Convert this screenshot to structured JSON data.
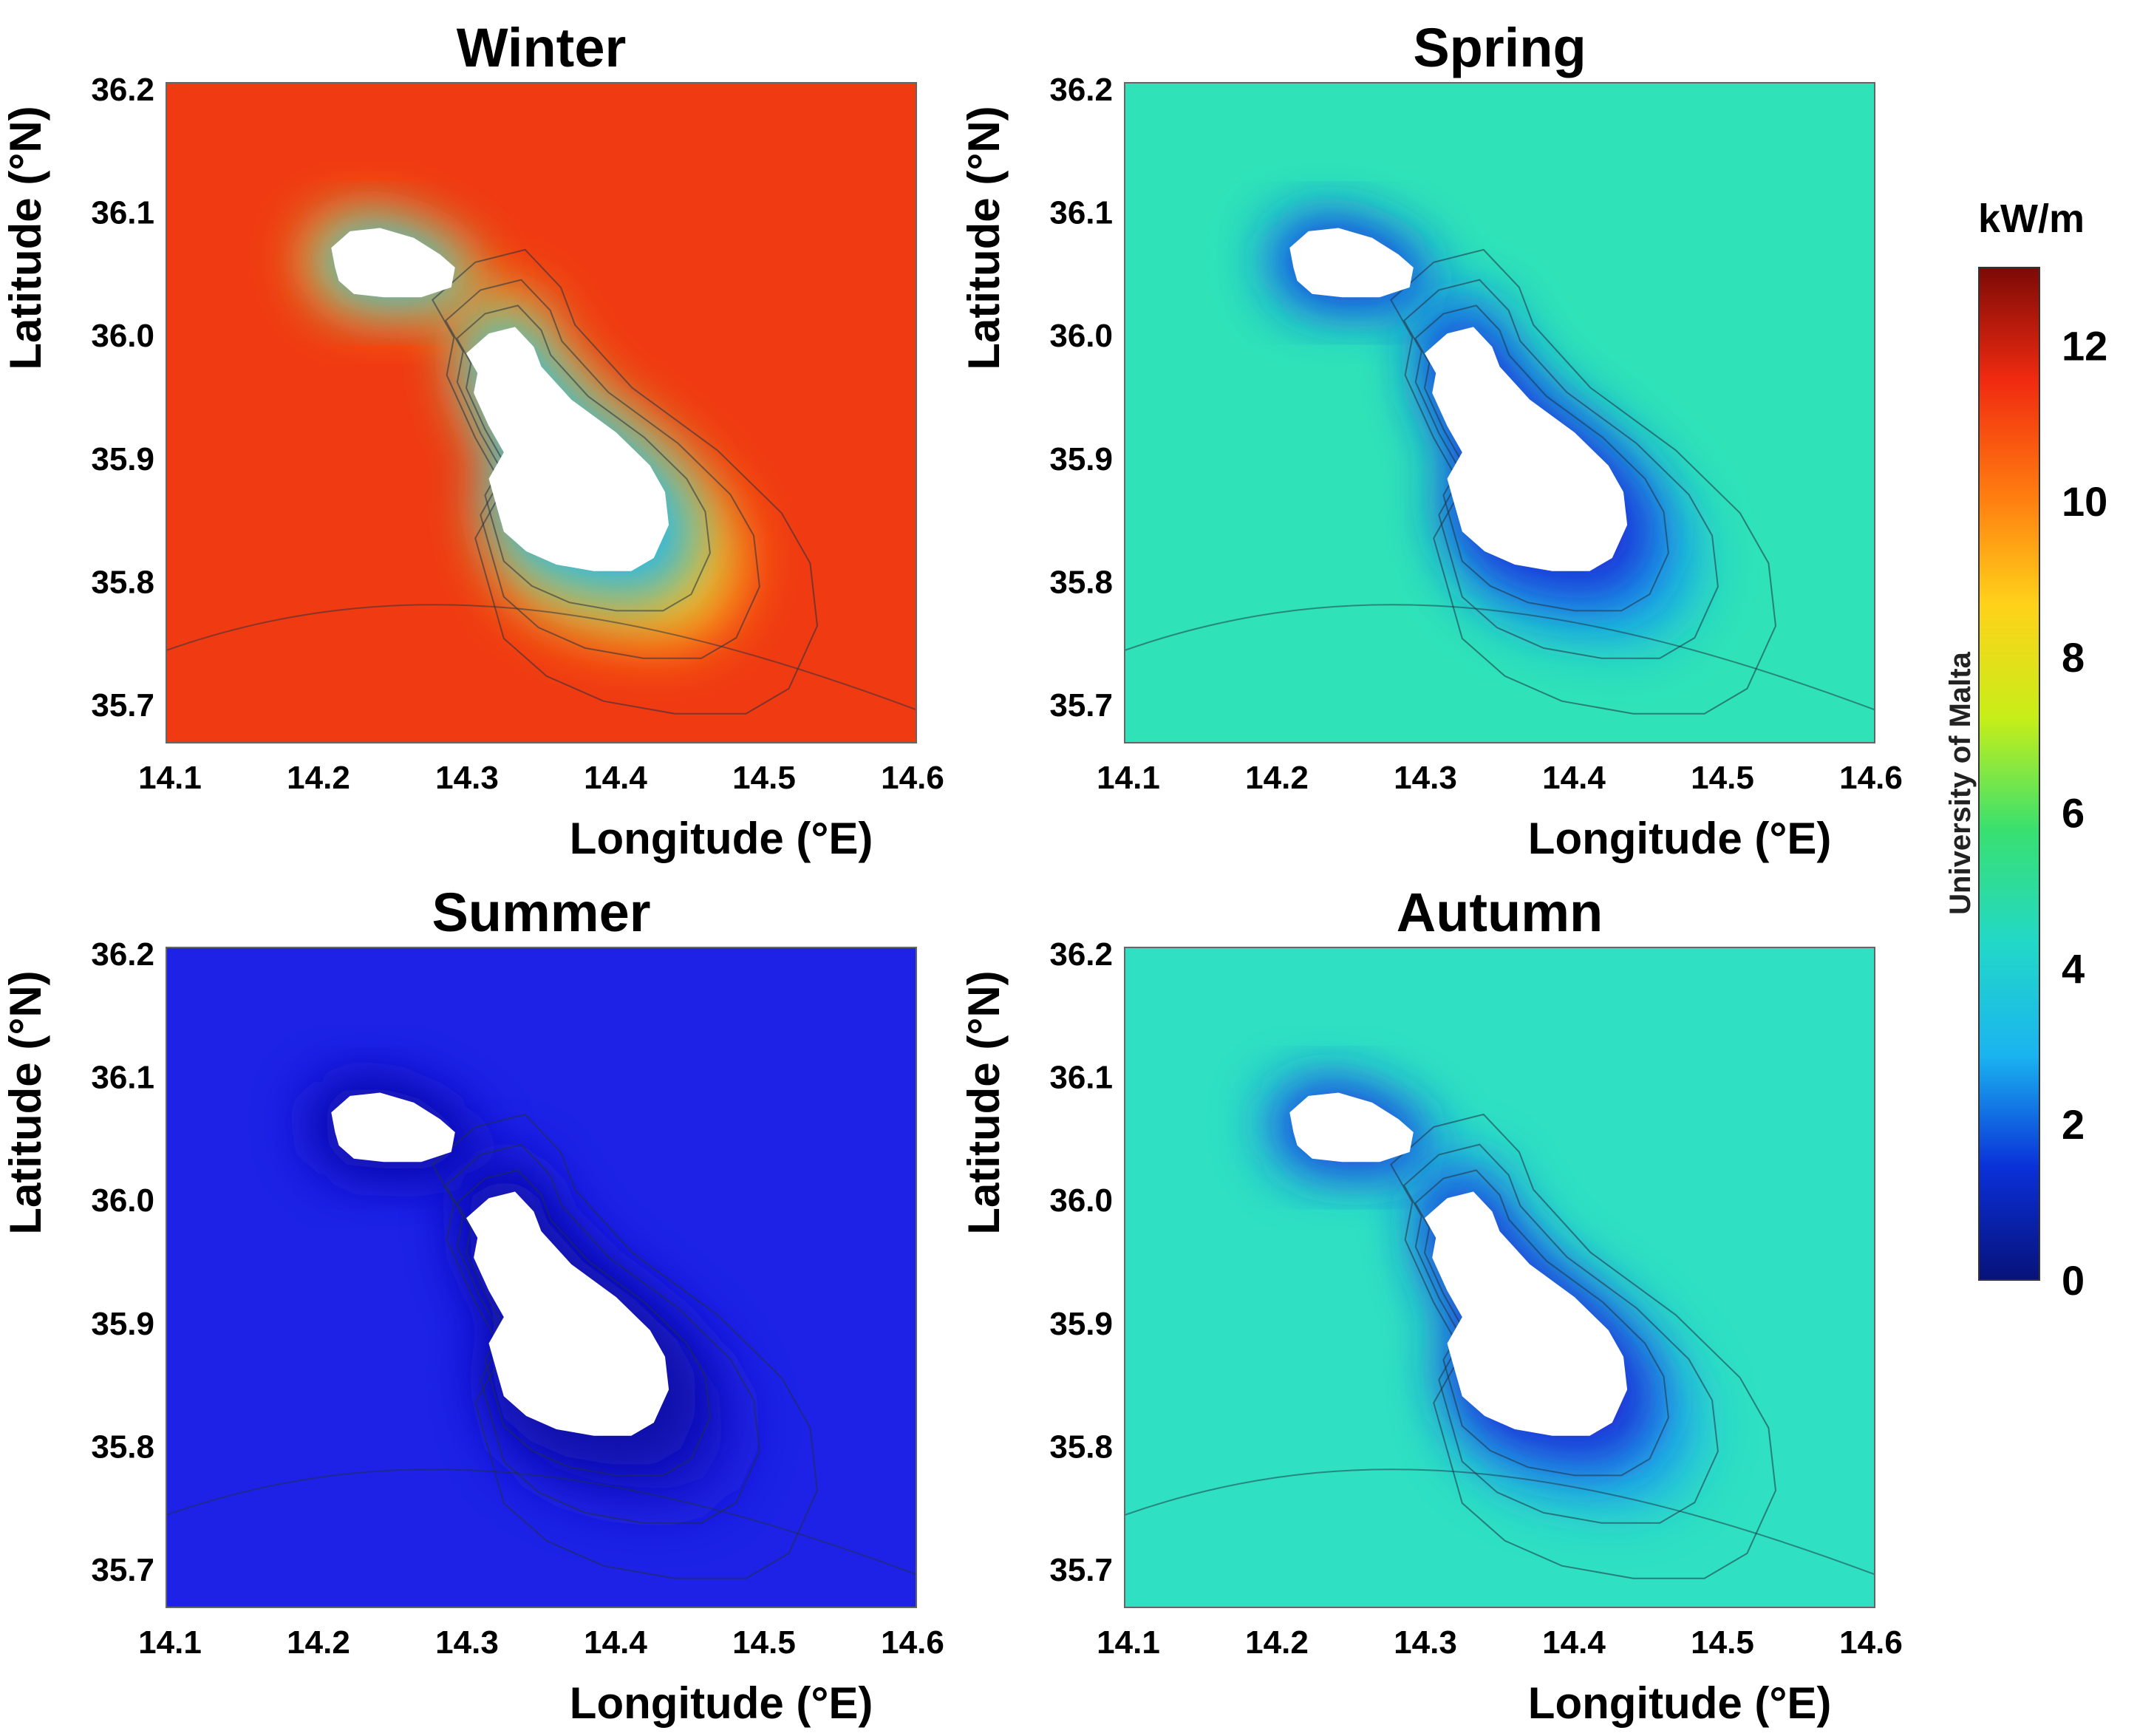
{
  "figure": {
    "panels": [
      {
        "id": "winter",
        "title": "Winter",
        "sea_color": "#f03a12",
        "near_color": "#ffd21a",
        "coast_color": "#28b8e8"
      },
      {
        "id": "spring",
        "title": "Spring",
        "sea_color": "#2fe2b8",
        "near_color": "#18a8f0",
        "coast_color": "#1a2fd8"
      },
      {
        "id": "summer",
        "title": "Summer",
        "sea_color": "#1d22e6",
        "near_color": "#1519c8",
        "coast_color": "#0e10a6"
      },
      {
        "id": "autumn",
        "title": "Autumn",
        "sea_color": "#2fe0c2",
        "near_color": "#1aaaf0",
        "coast_color": "#1a2cd6"
      }
    ],
    "x_ticks": [
      "14.1",
      "14.2",
      "14.3",
      "14.4",
      "14.5",
      "14.6"
    ],
    "y_ticks": [
      "36.2",
      "36.1",
      "36.0",
      "35.9",
      "35.8",
      "35.7"
    ],
    "xlabel": "Longitude (°E)",
    "ylabel": "Latitude (°N)",
    "xlim": [
      14.1,
      14.6
    ],
    "ylim": [
      35.67,
      36.2
    ]
  },
  "colorbar": {
    "unit": "kW/m",
    "credit": "University of Malta",
    "range": [
      0,
      13
    ],
    "ticks": [
      {
        "value": 0,
        "label": "0"
      },
      {
        "value": 2,
        "label": "2"
      },
      {
        "value": 4,
        "label": "4"
      },
      {
        "value": 6,
        "label": "6"
      },
      {
        "value": 8,
        "label": "8"
      },
      {
        "value": 10,
        "label": "10"
      },
      {
        "value": 12,
        "label": "12"
      }
    ],
    "stops": [
      "#08127a",
      "#0a30d8",
      "#1ab4f0",
      "#22d8c8",
      "#38e070",
      "#c8ee18",
      "#ffd21a",
      "#ff7a10",
      "#f02a10",
      "#7c0a06"
    ]
  }
}
